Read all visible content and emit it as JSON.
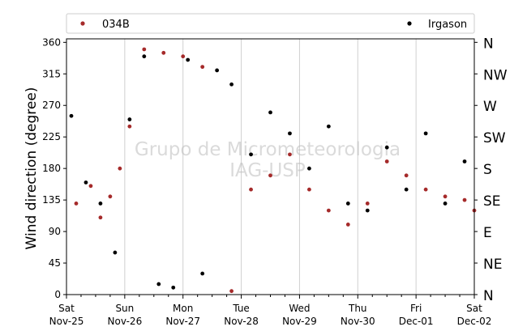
{
  "chart_data": {
    "type": "scatter",
    "title": "",
    "xlabel": "",
    "ylabel": "Wind direction (degree)",
    "ylim": [
      0,
      365
    ],
    "xlim": [
      "2025-11-25",
      "2025-12-02"
    ],
    "grid": "vertical",
    "legend_position": "top",
    "yticks": [
      0,
      45,
      90,
      135,
      180,
      225,
      270,
      315,
      360
    ],
    "xticks": [
      {
        "day": "Sat",
        "date": "Nov-25"
      },
      {
        "day": "Sun",
        "date": "Nov-26"
      },
      {
        "day": "Mon",
        "date": "Nov-27"
      },
      {
        "day": "Tue",
        "date": "Nov-28"
      },
      {
        "day": "Wed",
        "date": "Nov-29"
      },
      {
        "day": "Thu",
        "date": "Nov-30"
      },
      {
        "day": "Fri",
        "date": "Dec-01"
      },
      {
        "day": "Sat",
        "date": "Dec-02"
      }
    ],
    "compass_labels": [
      "N",
      "NE",
      "E",
      "SE",
      "S",
      "SW",
      "W",
      "NW",
      "N"
    ],
    "watermark": [
      "Grupo de Micrometeorologia",
      "IAG-USP"
    ],
    "series": [
      {
        "name": "034B",
        "color": "#a52a2a",
        "values": [
          {
            "time": "Nov-25 04:00",
            "direction": 130
          },
          {
            "time": "Nov-25 10:00",
            "direction": 155
          },
          {
            "time": "Nov-25 14:00",
            "direction": 110
          },
          {
            "time": "Nov-25 18:00",
            "direction": 140
          },
          {
            "time": "Nov-25 22:00",
            "direction": 180
          },
          {
            "time": "Nov-26 02:00",
            "direction": 240
          },
          {
            "time": "Nov-26 08:00",
            "direction": 350
          },
          {
            "time": "Nov-26 16:00",
            "direction": 345
          },
          {
            "time": "Nov-27 00:00",
            "direction": 340
          },
          {
            "time": "Nov-27 08:00",
            "direction": 325
          },
          {
            "time": "Nov-27 20:00",
            "direction": 5
          },
          {
            "time": "Nov-28 04:00",
            "direction": 150
          },
          {
            "time": "Nov-28 12:00",
            "direction": 170
          },
          {
            "time": "Nov-28 20:00",
            "direction": 200
          },
          {
            "time": "Nov-29 04:00",
            "direction": 150
          },
          {
            "time": "Nov-29 12:00",
            "direction": 120
          },
          {
            "time": "Nov-29 20:00",
            "direction": 100
          },
          {
            "time": "Nov-30 04:00",
            "direction": 130
          },
          {
            "time": "Nov-30 12:00",
            "direction": 190
          },
          {
            "time": "Nov-30 20:00",
            "direction": 170
          },
          {
            "time": "Dec-01 04:00",
            "direction": 150
          },
          {
            "time": "Dec-01 12:00",
            "direction": 140
          },
          {
            "time": "Dec-01 20:00",
            "direction": 135
          },
          {
            "time": "Dec-02 00:00",
            "direction": 120
          }
        ]
      },
      {
        "name": "Irgason",
        "color": "#000000",
        "values": [
          {
            "time": "Nov-25 02:00",
            "direction": 255
          },
          {
            "time": "Nov-25 08:00",
            "direction": 160
          },
          {
            "time": "Nov-25 14:00",
            "direction": 130
          },
          {
            "time": "Nov-25 20:00",
            "direction": 60
          },
          {
            "time": "Nov-26 02:00",
            "direction": 250
          },
          {
            "time": "Nov-26 08:00",
            "direction": 340
          },
          {
            "time": "Nov-26 14:00",
            "direction": 15
          },
          {
            "time": "Nov-26 20:00",
            "direction": 10
          },
          {
            "time": "Nov-27 02:00",
            "direction": 335
          },
          {
            "time": "Nov-27 08:00",
            "direction": 30
          },
          {
            "time": "Nov-27 14:00",
            "direction": 320
          },
          {
            "time": "Nov-27 20:00",
            "direction": 300
          },
          {
            "time": "Nov-28 04:00",
            "direction": 200
          },
          {
            "time": "Nov-28 12:00",
            "direction": 260
          },
          {
            "time": "Nov-28 20:00",
            "direction": 230
          },
          {
            "time": "Nov-29 04:00",
            "direction": 180
          },
          {
            "time": "Nov-29 12:00",
            "direction": 240
          },
          {
            "time": "Nov-29 20:00",
            "direction": 130
          },
          {
            "time": "Nov-30 04:00",
            "direction": 120
          },
          {
            "time": "Nov-30 12:00",
            "direction": 210
          },
          {
            "time": "Nov-30 20:00",
            "direction": 150
          },
          {
            "time": "Dec-01 04:00",
            "direction": 230
          },
          {
            "time": "Dec-01 12:00",
            "direction": 130
          },
          {
            "time": "Dec-01 20:00",
            "direction": 190
          }
        ]
      }
    ]
  }
}
